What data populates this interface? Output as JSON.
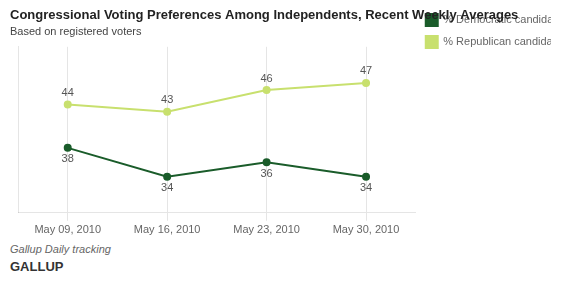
{
  "chart_data": {
    "type": "line",
    "title": "Congressional Voting Preferences Among Independents, Recent Weekly Averages",
    "subtitle": "Based on registered voters",
    "annotations": [
      "Gallup Daily tracking",
      "GALLUP"
    ],
    "categories": [
      "May 09, 2010",
      "May 16, 2010",
      "May 23, 2010",
      "May 30, 2010"
    ],
    "series": [
      {
        "name": "% Democratic candidate",
        "color": "#1a5c2a",
        "values": [
          38,
          34,
          36,
          34
        ]
      },
      {
        "name": "% Republican candidate",
        "color": "#c8e06e",
        "values": [
          44,
          43,
          46,
          47
        ]
      }
    ],
    "ylim": [
      29,
      52
    ],
    "yticks": [],
    "grid": "x",
    "legend": "right",
    "data_labels": true,
    "tick_labels": "x",
    "marker": "circle"
  }
}
